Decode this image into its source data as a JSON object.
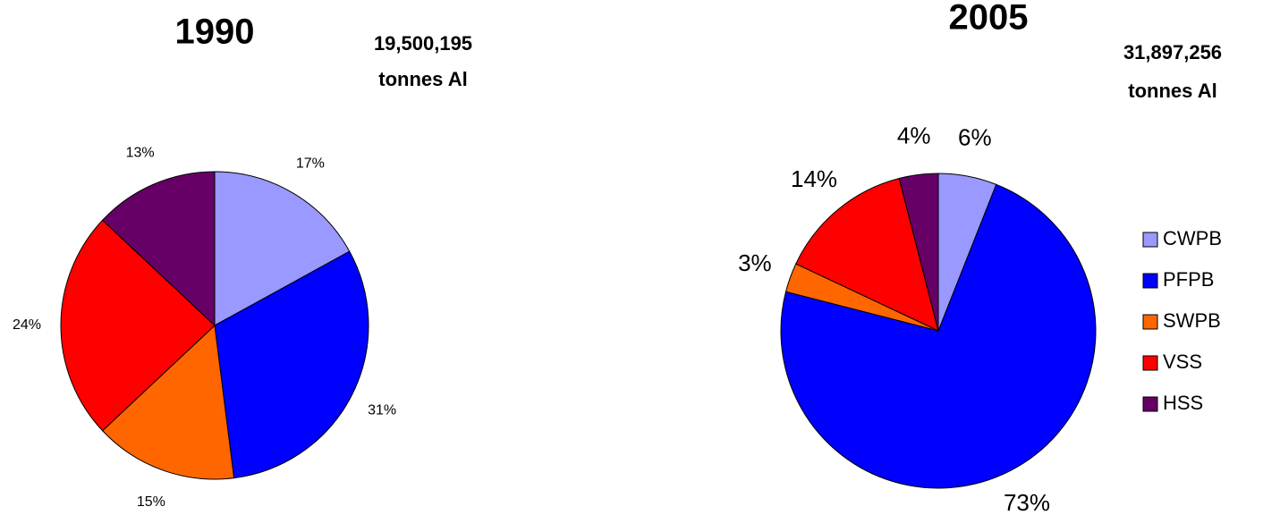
{
  "chart_data": [
    {
      "type": "pie",
      "title": "1990",
      "annotations": [
        "19,500,195",
        "tonnes Al"
      ],
      "categories": [
        "CWPB",
        "PFPB",
        "SWPB",
        "VSS",
        "HSS"
      ],
      "values": [
        17,
        31,
        15,
        24,
        13
      ],
      "value_labels": [
        "17%",
        "31%",
        "15%",
        "24%",
        "13%"
      ],
      "colors": [
        "#9999ff",
        "#0000ff",
        "#ff6600",
        "#ff0000",
        "#660066"
      ],
      "legend": false
    },
    {
      "type": "pie",
      "title": "2005",
      "annotations": [
        "31,897,256",
        "tonnes Al"
      ],
      "categories": [
        "CWPB",
        "PFPB",
        "SWPB",
        "VSS",
        "HSS"
      ],
      "values": [
        6,
        73,
        3,
        14,
        4
      ],
      "value_labels": [
        "6%",
        "73%",
        "3%",
        "14%",
        "4%"
      ],
      "colors": [
        "#9999ff",
        "#0000ff",
        "#ff6600",
        "#ff0000",
        "#660066"
      ],
      "legend": "right"
    }
  ]
}
